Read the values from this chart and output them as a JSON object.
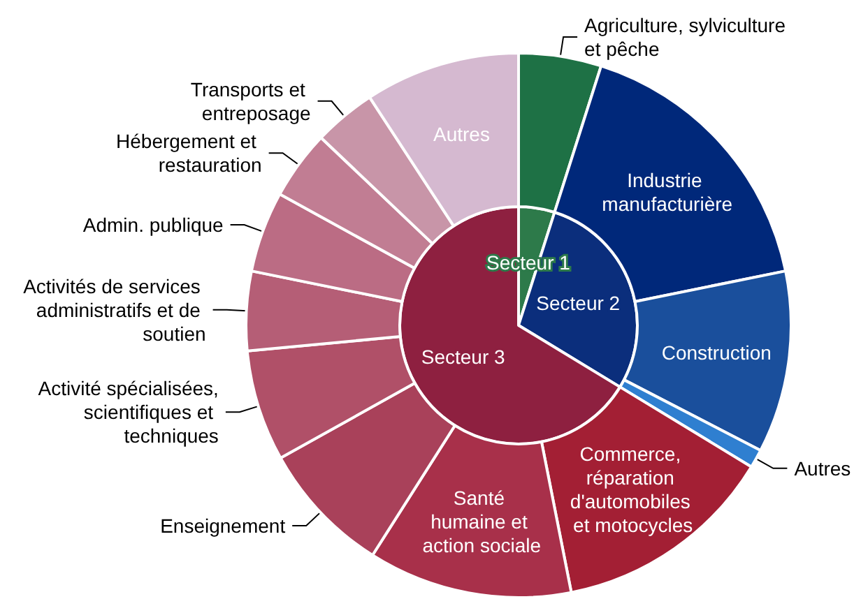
{
  "chart_data": [
    {
      "type": "pie",
      "categories": [
        "Secteur 1",
        "Secteur 2",
        "Secteur 3"
      ],
      "values": [
        4.9,
        28.8,
        66.3
      ],
      "colors": [
        "#2d7a4a",
        "#0b2e7c",
        "#8e2040"
      ]
    },
    {
      "type": "donut",
      "categories": [
        "Agriculture, sylviculture et pêche",
        "Industrie manufacturière",
        "Construction",
        "Autres",
        "Commerce, réparation d'automobiles et motocycles",
        "Santé humaine et action sociale",
        "Enseignement",
        "Activité spécialisées, scientifiques et techniques",
        "Activités de services administratifs et de soutien",
        "Admin. publique",
        "Hébergement et restauration",
        "Transports et entreposage",
        "Autres"
      ],
      "values": [
        4.9,
        16.9,
        10.8,
        1.1,
        13.2,
        12.1,
        7.9,
        6.6,
        4.7,
        4.8,
        4.1,
        3.7,
        9.2
      ],
      "colors": [
        "#1e7145",
        "#00287a",
        "#1a4f9c",
        "#2f7fd0",
        "#a31f34",
        "#a8304a",
        "#a9415a",
        "#b05068",
        "#b55e76",
        "#bb6c84",
        "#c17d93",
        "#c895a8",
        "#d5b9d0"
      ]
    }
  ]
}
